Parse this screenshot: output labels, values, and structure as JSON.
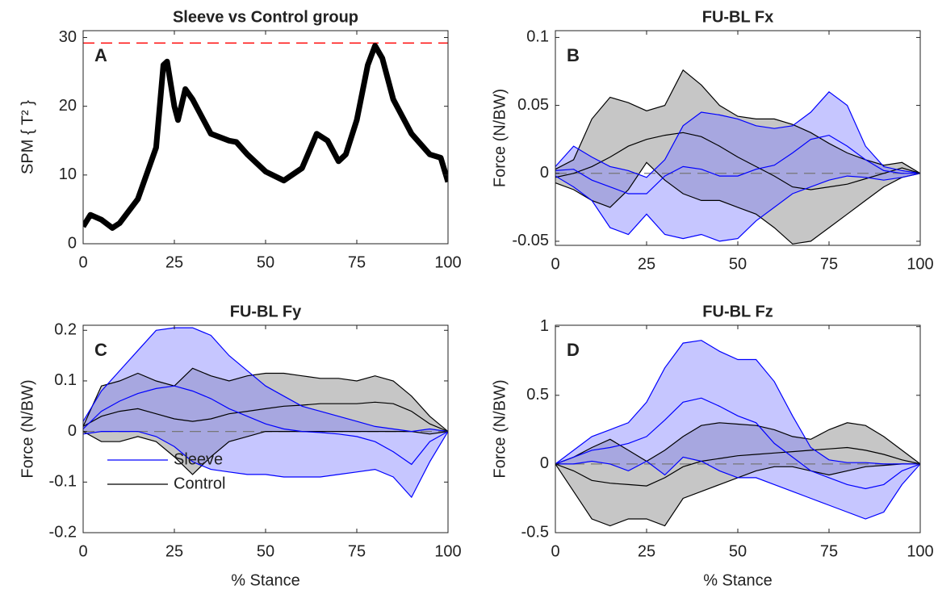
{
  "chart_data": [
    {
      "type": "line",
      "title": "Sleeve vs Control group",
      "panel_label": "A",
      "ylabel": "SPM { T² }",
      "xlim": [
        0,
        100
      ],
      "ylim": [
        0,
        31
      ],
      "xticks": [
        0,
        25,
        50,
        75,
        100
      ],
      "yticks": [
        0,
        10,
        20,
        30
      ],
      "threshold": 29.2,
      "threshold_color": "#ff0000",
      "x": [
        0,
        2,
        5,
        8,
        10,
        15,
        20,
        22,
        23,
        25,
        26,
        28,
        30,
        35,
        40,
        42,
        45,
        50,
        55,
        60,
        64,
        67,
        70,
        72,
        75,
        78,
        80,
        82,
        85,
        90,
        95,
        98,
        100
      ],
      "series": [
        {
          "color": "#000000",
          "values": [
            2.5,
            4.2,
            3.5,
            2.3,
            3,
            6.5,
            14,
            26,
            26.5,
            20,
            18,
            22.5,
            21,
            16,
            15,
            14.8,
            13,
            10.5,
            9.2,
            11,
            16,
            15,
            12,
            13,
            18,
            26,
            28.8,
            27,
            21,
            16,
            13,
            12.5,
            9
          ]
        }
      ]
    },
    {
      "type": "band",
      "title": "FU-BL Fx",
      "panel_label": "B",
      "ylabel": "Force (N/BW)",
      "xlim": [
        0,
        100
      ],
      "ylim": [
        -0.053,
        0.105
      ],
      "xticks": [
        0,
        25,
        50,
        75,
        100
      ],
      "yticks": [
        -0.05,
        0,
        0.05,
        0.1
      ],
      "reference_line": 0,
      "x": [
        0,
        5,
        10,
        15,
        20,
        25,
        30,
        35,
        40,
        45,
        50,
        55,
        60,
        65,
        70,
        75,
        80,
        85,
        90,
        95,
        100
      ],
      "series": [
        {
          "color": "#000000",
          "fill": "#808080",
          "values": [
            -0.003,
            0,
            0.005,
            0.012,
            0.02,
            0.025,
            0.028,
            0.03,
            0.027,
            0.02,
            0.012,
            0.005,
            -0.002,
            -0.01,
            -0.012,
            -0.01,
            -0.008,
            -0.004,
            0,
            0.004,
            0
          ],
          "upper": [
            0.003,
            0.01,
            0.04,
            0.056,
            0.052,
            0.046,
            0.05,
            0.076,
            0.065,
            0.05,
            0.042,
            0.04,
            0.04,
            0.036,
            0.03,
            0.022,
            0.015,
            0.01,
            0.006,
            0.008,
            0
          ],
          "lower": [
            -0.007,
            -0.012,
            -0.02,
            -0.025,
            -0.012,
            0.008,
            -0.005,
            -0.015,
            -0.02,
            -0.02,
            -0.025,
            -0.03,
            -0.04,
            -0.052,
            -0.05,
            -0.04,
            -0.03,
            -0.02,
            -0.01,
            -0.003,
            0
          ]
        },
        {
          "color": "#0000ff",
          "fill": "#8080ff",
          "values": [
            0.002,
            0.003,
            -0.005,
            -0.01,
            -0.015,
            -0.015,
            -0.002,
            0.005,
            0.003,
            -0.002,
            -0.002,
            0.003,
            0.006,
            0.015,
            0.025,
            0.028,
            0.02,
            0.01,
            0.002,
            0,
            0
          ],
          "upper": [
            0.005,
            0.02,
            0.012,
            0.005,
            0.002,
            -0.003,
            0.01,
            0.035,
            0.045,
            0.043,
            0.04,
            0.035,
            0.033,
            0.035,
            0.045,
            0.06,
            0.05,
            0.02,
            0.005,
            0.002,
            0
          ],
          "lower": [
            -0.002,
            -0.01,
            -0.02,
            -0.04,
            -0.045,
            -0.03,
            -0.045,
            -0.048,
            -0.045,
            -0.05,
            -0.048,
            -0.035,
            -0.025,
            -0.015,
            -0.01,
            -0.005,
            -0.002,
            -0.003,
            -0.005,
            -0.003,
            0
          ]
        }
      ]
    },
    {
      "type": "band",
      "title": "FU-BL Fy",
      "panel_label": "C",
      "ylabel": "Force (N/BW)",
      "xlabel": "% Stance",
      "xlim": [
        0,
        100
      ],
      "ylim": [
        -0.2,
        0.21
      ],
      "xticks": [
        0,
        25,
        50,
        75,
        100
      ],
      "yticks": [
        -0.2,
        -0.1,
        0,
        0.1,
        0.2
      ],
      "reference_line": 0,
      "legend": "lower left",
      "x": [
        0,
        5,
        10,
        15,
        20,
        25,
        30,
        35,
        40,
        45,
        50,
        55,
        60,
        65,
        70,
        75,
        80,
        85,
        90,
        95,
        100
      ],
      "series": [
        {
          "name": "Control",
          "color": "#000000",
          "fill": "#808080",
          "values": [
            0.01,
            0.03,
            0.04,
            0.045,
            0.035,
            0.025,
            0.02,
            0.025,
            0.035,
            0.04,
            0.045,
            0.05,
            0.052,
            0.055,
            0.055,
            0.055,
            0.058,
            0.055,
            0.04,
            0.015,
            0
          ],
          "upper": [
            0.01,
            0.09,
            0.1,
            0.115,
            0.1,
            0.09,
            0.125,
            0.11,
            0.1,
            0.11,
            0.115,
            0.115,
            0.11,
            0.105,
            0.105,
            0.1,
            0.11,
            0.1,
            0.07,
            0.03,
            0
          ],
          "lower": [
            0,
            -0.02,
            -0.02,
            -0.01,
            -0.02,
            -0.05,
            -0.085,
            -0.05,
            -0.02,
            -0.01,
            0,
            0,
            0,
            0,
            0,
            0,
            0,
            0,
            0,
            -0.005,
            0
          ]
        },
        {
          "name": "Sleeve",
          "color": "#0000ff",
          "fill": "#8080ff",
          "values": [
            0.005,
            0.04,
            0.06,
            0.075,
            0.085,
            0.09,
            0.08,
            0.065,
            0.045,
            0.03,
            0.015,
            0.005,
            0,
            -0.002,
            -0.005,
            -0.01,
            -0.02,
            -0.04,
            -0.065,
            -0.02,
            0
          ],
          "upper": [
            0.02,
            0.08,
            0.12,
            0.16,
            0.2,
            0.205,
            0.205,
            0.19,
            0.15,
            0.12,
            0.09,
            0.07,
            0.05,
            0.04,
            0.03,
            0.02,
            0.01,
            0.005,
            0,
            0.005,
            0
          ],
          "lower": [
            -0.005,
            0,
            0,
            0,
            -0.01,
            -0.03,
            -0.06,
            -0.075,
            -0.08,
            -0.085,
            -0.085,
            -0.09,
            -0.09,
            -0.09,
            -0.085,
            -0.08,
            -0.075,
            -0.09,
            -0.13,
            -0.06,
            0
          ]
        }
      ]
    },
    {
      "type": "band",
      "title": "FU-BL Fz",
      "panel_label": "D",
      "ylabel": "Force (N/BW)",
      "xlabel": "% Stance",
      "xlim": [
        0,
        100
      ],
      "ylim": [
        -0.5,
        1.01
      ],
      "xticks": [
        0,
        25,
        50,
        75,
        100
      ],
      "yticks": [
        -0.5,
        0,
        0.5,
        1
      ],
      "reference_line": 0,
      "x": [
        0,
        5,
        10,
        15,
        20,
        25,
        30,
        35,
        40,
        45,
        50,
        55,
        60,
        65,
        70,
        75,
        80,
        85,
        90,
        95,
        100
      ],
      "series": [
        {
          "color": "#000000",
          "fill": "#808080",
          "values": [
            0,
            -0.05,
            -0.12,
            -0.14,
            -0.15,
            -0.16,
            -0.1,
            -0.02,
            0.02,
            0.04,
            0.06,
            0.07,
            0.08,
            0.09,
            0.1,
            0.11,
            0.12,
            0.1,
            0.07,
            0.03,
            0
          ],
          "upper": [
            0,
            0.05,
            0.12,
            0.18,
            0.1,
            0.02,
            0.1,
            0.2,
            0.28,
            0.3,
            0.29,
            0.28,
            0.25,
            0.2,
            0.18,
            0.25,
            0.3,
            0.28,
            0.2,
            0.1,
            0
          ],
          "lower": [
            0,
            -0.2,
            -0.4,
            -0.45,
            -0.4,
            -0.4,
            -0.45,
            -0.25,
            -0.2,
            -0.15,
            -0.1,
            -0.05,
            -0.02,
            -0.02,
            -0.05,
            -0.08,
            -0.05,
            -0.02,
            -0.01,
            0,
            0
          ]
        },
        {
          "color": "#0000ff",
          "fill": "#8080ff",
          "values": [
            0,
            0.05,
            0.1,
            0.12,
            0.15,
            0.2,
            0.32,
            0.45,
            0.48,
            0.42,
            0.35,
            0.3,
            0.15,
            0.05,
            -0.05,
            -0.1,
            -0.15,
            -0.18,
            -0.15,
            -0.05,
            0
          ],
          "upper": [
            0,
            0.1,
            0.2,
            0.25,
            0.3,
            0.45,
            0.7,
            0.88,
            0.9,
            0.82,
            0.76,
            0.76,
            0.6,
            0.35,
            0.12,
            0.03,
            0.01,
            0.01,
            0,
            0,
            0
          ],
          "lower": [
            0,
            0,
            0.02,
            0,
            -0.05,
            0.02,
            -0.08,
            0.05,
            0.02,
            -0.05,
            -0.1,
            -0.1,
            -0.15,
            -0.2,
            -0.25,
            -0.3,
            -0.35,
            -0.4,
            -0.35,
            -0.15,
            0
          ]
        }
      ]
    }
  ]
}
